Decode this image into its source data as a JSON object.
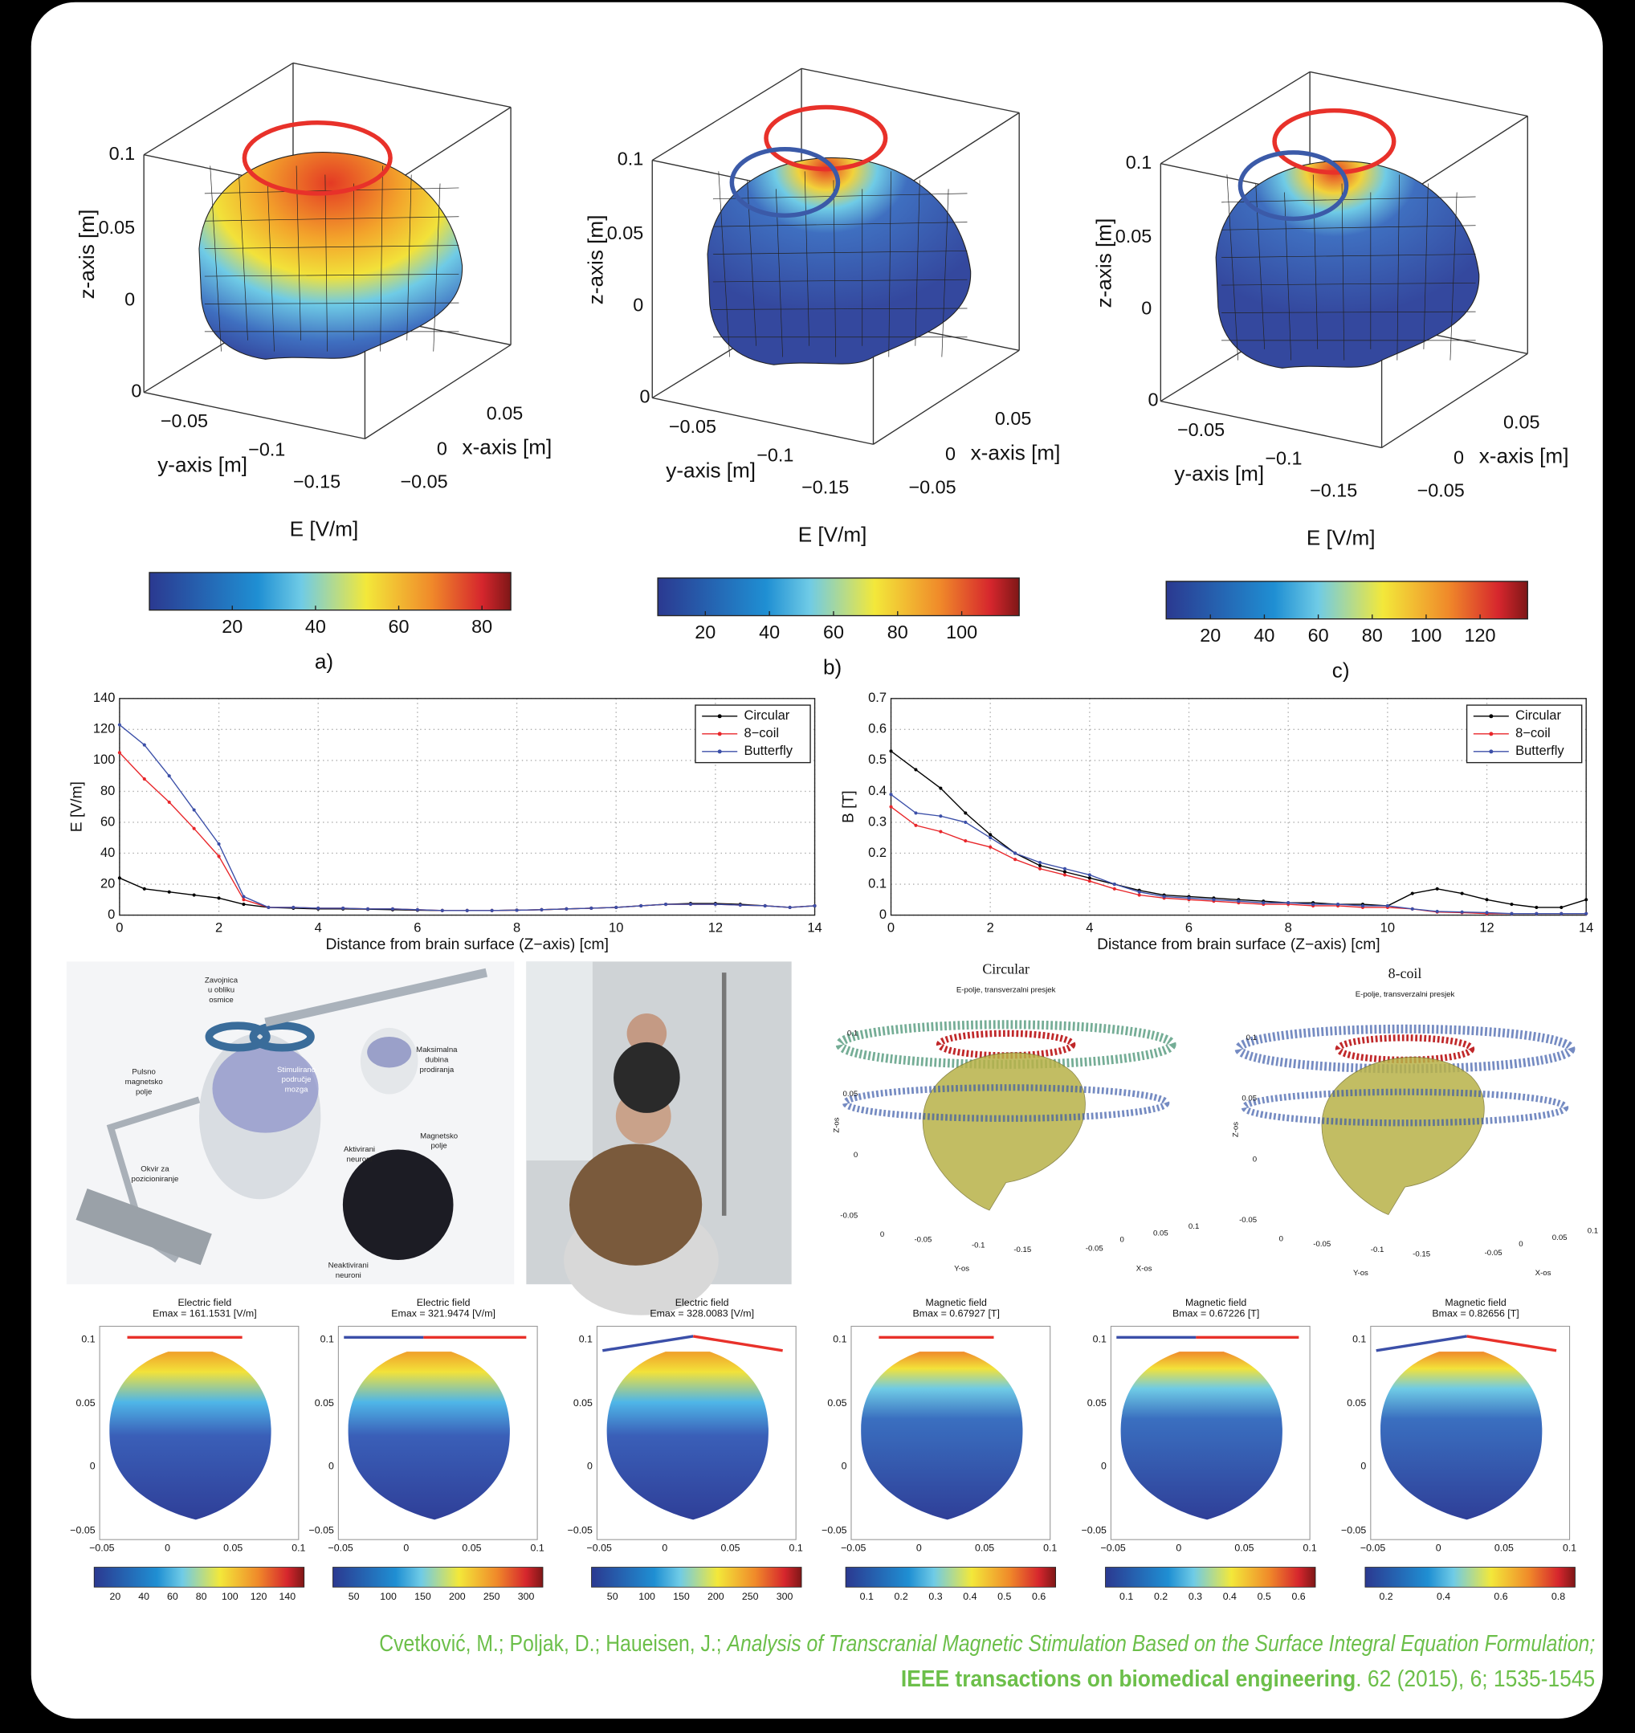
{
  "panels_3d": [
    {
      "z_label": "z-axis [m]",
      "z_ticks": [
        "0.1",
        "0.05",
        "0"
      ],
      "y_label": "y-axis [m]",
      "y_ticks": [
        "0",
        "−0.05",
        "−0.1",
        "−0.15"
      ],
      "x_label": "x-axis [m]",
      "x_ticks": [
        "0.05",
        "0",
        "−0.05"
      ],
      "colorbar_label": "E [V/m]",
      "colorbar_ticks": [
        "20",
        "40",
        "60",
        "80"
      ],
      "caption": "a)"
    },
    {
      "z_label": "z-axis [m]",
      "z_ticks": [
        "0.1",
        "0.05",
        "0"
      ],
      "y_label": "y-axis [m]",
      "y_ticks": [
        "0",
        "−0.05",
        "−0.1",
        "−0.15"
      ],
      "x_label": "x-axis [m]",
      "x_ticks": [
        "0.05",
        "0",
        "−0.05"
      ],
      "colorbar_label": "E [V/m]",
      "colorbar_ticks": [
        "20",
        "40",
        "60",
        "80",
        "100"
      ],
      "caption": "b)"
    },
    {
      "z_label": "z-axis [m]",
      "z_ticks": [
        "0.1",
        "0.05",
        "0"
      ],
      "y_label": "y-axis [m]",
      "y_ticks": [
        "0",
        "−0.05",
        "−0.1",
        "−0.15"
      ],
      "x_label": "x-axis [m]",
      "x_ticks": [
        "0.05",
        "0",
        "−0.05"
      ],
      "colorbar_label": "E [V/m]",
      "colorbar_ticks": [
        "20",
        "40",
        "60",
        "80",
        "100",
        "120"
      ],
      "caption": "c)"
    }
  ],
  "chart_data": [
    {
      "type": "line",
      "x_label": "Distance from brain surface (Z−axis) [cm]",
      "y_label": "E [V/m]",
      "x": [
        0,
        0.5,
        1,
        1.5,
        2,
        2.5,
        3,
        3.5,
        4,
        4.5,
        5,
        5.5,
        6,
        6.5,
        7,
        7.5,
        8,
        8.5,
        9,
        9.5,
        10,
        10.5,
        11,
        11.5,
        12,
        12.5,
        13,
        13.5,
        14
      ],
      "xlim": [
        0,
        14
      ],
      "xticks": [
        0,
        2,
        4,
        6,
        8,
        10,
        12,
        14
      ],
      "ylim": [
        0,
        140
      ],
      "yticks": [
        0,
        20,
        40,
        60,
        80,
        100,
        120,
        140
      ],
      "grid": true,
      "legend": "upper right",
      "series": [
        {
          "name": "Circular",
          "color": "#000000",
          "values": [
            24,
            17,
            15,
            13,
            11,
            7,
            5,
            4.5,
            4,
            4,
            3.8,
            3.5,
            3.2,
            3,
            3,
            3,
            3.2,
            3.5,
            4,
            4.5,
            5,
            6,
            7,
            7.5,
            7.5,
            7,
            6,
            5,
            6
          ]
        },
        {
          "name": "8−coil",
          "color": "#e8262a",
          "values": [
            105,
            88,
            73,
            56,
            38,
            10,
            5,
            5,
            4.5,
            4.5,
            4,
            4,
            3.5,
            3,
            3,
            3,
            3.2,
            3.5,
            4,
            4.5,
            5,
            6,
            7,
            7,
            7,
            6.5,
            6,
            5,
            6
          ]
        },
        {
          "name": "Butterfly",
          "color": "#3b4fa8",
          "values": [
            123,
            110,
            90,
            68,
            46,
            12,
            5,
            5,
            4.5,
            4.5,
            4,
            4,
            3.5,
            3,
            3,
            3,
            3.2,
            3.5,
            4,
            4.5,
            5,
            6,
            7,
            7,
            7,
            6.5,
            6,
            5,
            6
          ]
        }
      ]
    },
    {
      "type": "line",
      "x_label": "Distance from brain surface (Z−axis) [cm]",
      "y_label": "B [T]",
      "x": [
        0,
        0.5,
        1,
        1.5,
        2,
        2.5,
        3,
        3.5,
        4,
        4.5,
        5,
        5.5,
        6,
        6.5,
        7,
        7.5,
        8,
        8.5,
        9,
        9.5,
        10,
        10.5,
        11,
        11.5,
        12,
        12.5,
        13,
        13.5,
        14
      ],
      "xlim": [
        0,
        14
      ],
      "xticks": [
        0,
        2,
        4,
        6,
        8,
        10,
        12,
        14
      ],
      "ylim": [
        0,
        0.7
      ],
      "yticks": [
        0,
        0.1,
        0.2,
        0.3,
        0.4,
        0.5,
        0.6,
        0.7
      ],
      "grid": true,
      "legend": "upper right",
      "series": [
        {
          "name": "Circular",
          "color": "#000000",
          "values": [
            0.53,
            0.47,
            0.41,
            0.33,
            0.26,
            0.2,
            0.16,
            0.14,
            0.12,
            0.1,
            0.08,
            0.065,
            0.06,
            0.055,
            0.05,
            0.045,
            0.04,
            0.04,
            0.035,
            0.035,
            0.03,
            0.07,
            0.085,
            0.07,
            0.05,
            0.035,
            0.025,
            0.025,
            0.05
          ]
        },
        {
          "name": "8−coil",
          "color": "#e8262a",
          "values": [
            0.35,
            0.29,
            0.27,
            0.24,
            0.22,
            0.18,
            0.15,
            0.13,
            0.11,
            0.085,
            0.065,
            0.055,
            0.05,
            0.045,
            0.04,
            0.035,
            0.035,
            0.03,
            0.03,
            0.025,
            0.025,
            0.02,
            0.01,
            0.008,
            0.005,
            0.005,
            0.005,
            0.005,
            0.005
          ]
        },
        {
          "name": "Butterfly",
          "color": "#3b4fa8",
          "values": [
            0.39,
            0.33,
            0.32,
            0.3,
            0.25,
            0.2,
            0.17,
            0.15,
            0.13,
            0.1,
            0.075,
            0.06,
            0.055,
            0.05,
            0.045,
            0.04,
            0.04,
            0.035,
            0.035,
            0.03,
            0.03,
            0.02,
            0.012,
            0.01,
            0.008,
            0.005,
            0.005,
            0.005,
            0.005
          ]
        }
      ]
    }
  ],
  "illustration": {
    "labels": [
      {
        "lines": [
          "Zavojnica",
          "u obliku",
          "osmice"
        ]
      },
      {
        "lines": [
          "Pulsno",
          "magnetsko",
          "polje"
        ]
      },
      {
        "lines": [
          "Stimulirano",
          "područje",
          "mozga"
        ]
      },
      {
        "lines": [
          "Maksimalna",
          "dubina",
          "prodiranja"
        ]
      },
      {
        "lines": [
          "Aktivirani",
          "neuroni"
        ]
      },
      {
        "lines": [
          "Magnetsko",
          "polje"
        ]
      },
      {
        "lines": [
          "Okvir za",
          "pozicioniranje"
        ]
      },
      {
        "lines": [
          "Neaktivirani",
          "neuroni"
        ]
      }
    ]
  },
  "vector_plots": [
    {
      "title": "Circular",
      "subtitle": "E-polje, transverzalni presjek",
      "z_label": "Z-os",
      "y_label": "Y-os",
      "x_label": "X-os",
      "z_ticks": [
        "0.1",
        "0.05",
        "0",
        "-0.05"
      ],
      "y_ticks": [
        "0",
        "-0.05",
        "-0.1",
        "-0.15"
      ],
      "x_ticks": [
        "-0.05",
        "0",
        "0.05",
        "0.1"
      ]
    },
    {
      "title": "8-coil",
      "subtitle": "E-polje, transverzalni presjek",
      "z_label": "Z-os",
      "y_label": "Y-os",
      "x_label": "X-os",
      "z_ticks": [
        "0.1",
        "0.05",
        "0",
        "-0.05"
      ],
      "y_ticks": [
        "0",
        "-0.05",
        "-0.1",
        "-0.15"
      ],
      "x_ticks": [
        "-0.05",
        "0",
        "0.05",
        "0.1"
      ]
    }
  ],
  "slices": [
    {
      "title": "Electric field",
      "subtitle": "Emax = 161.1531 [V/m]",
      "y_ticks": [
        "0.1",
        "0.05",
        "0",
        "−0.05"
      ],
      "x_ticks": [
        "−0.05",
        "0",
        "0.05",
        "0.1"
      ],
      "colorbar_ticks": [
        "20",
        "40",
        "60",
        "80",
        "100",
        "120",
        "140"
      ]
    },
    {
      "title": "Electric field",
      "subtitle": "Emax = 321.9474 [V/m]",
      "y_ticks": [
        "0.1",
        "0.05",
        "0",
        "−0.05"
      ],
      "x_ticks": [
        "−0.05",
        "0",
        "0.05",
        "0.1"
      ],
      "colorbar_ticks": [
        "50",
        "100",
        "150",
        "200",
        "250",
        "300"
      ]
    },
    {
      "title": "Electric field",
      "subtitle": "Emax = 328.0083 [V/m]",
      "y_ticks": [
        "0.1",
        "0.05",
        "0",
        "−0.05"
      ],
      "x_ticks": [
        "−0.05",
        "0",
        "0.05",
        "0.1"
      ],
      "colorbar_ticks": [
        "50",
        "100",
        "150",
        "200",
        "250",
        "300"
      ]
    },
    {
      "title": "Magnetic field",
      "subtitle": "Bmax = 0.67927 [T]",
      "y_ticks": [
        "0.1",
        "0.05",
        "0",
        "−0.05"
      ],
      "x_ticks": [
        "−0.05",
        "0",
        "0.05",
        "0.1"
      ],
      "colorbar_ticks": [
        "0.1",
        "0.2",
        "0.3",
        "0.4",
        "0.5",
        "0.6"
      ]
    },
    {
      "title": "Magnetic field",
      "subtitle": "Bmax = 0.67226 [T]",
      "y_ticks": [
        "0.1",
        "0.05",
        "0",
        "−0.05"
      ],
      "x_ticks": [
        "−0.05",
        "0",
        "0.05",
        "0.1"
      ],
      "colorbar_ticks": [
        "0.1",
        "0.2",
        "0.3",
        "0.4",
        "0.5",
        "0.6"
      ]
    },
    {
      "title": "Magnetic field",
      "subtitle": "Bmax = 0.82656 [T]",
      "y_ticks": [
        "0.1",
        "0.05",
        "0",
        "−0.05"
      ],
      "x_ticks": [
        "−0.05",
        "0",
        "0.05",
        "0.1"
      ],
      "colorbar_ticks": [
        "0.2",
        "0.4",
        "0.6",
        "0.8"
      ]
    }
  ],
  "citation": {
    "authors": "Cvetković, M.; Poljak, D.; Haueisen, J.; ",
    "title": "Analysis of Transcranial Magnetic Stimulation Based on the Surface Integral Equation Formulation;",
    "journal": "IEEE transactions on biomedical engineering",
    "details": ". 62 (2015), 6; 1535-1545"
  }
}
